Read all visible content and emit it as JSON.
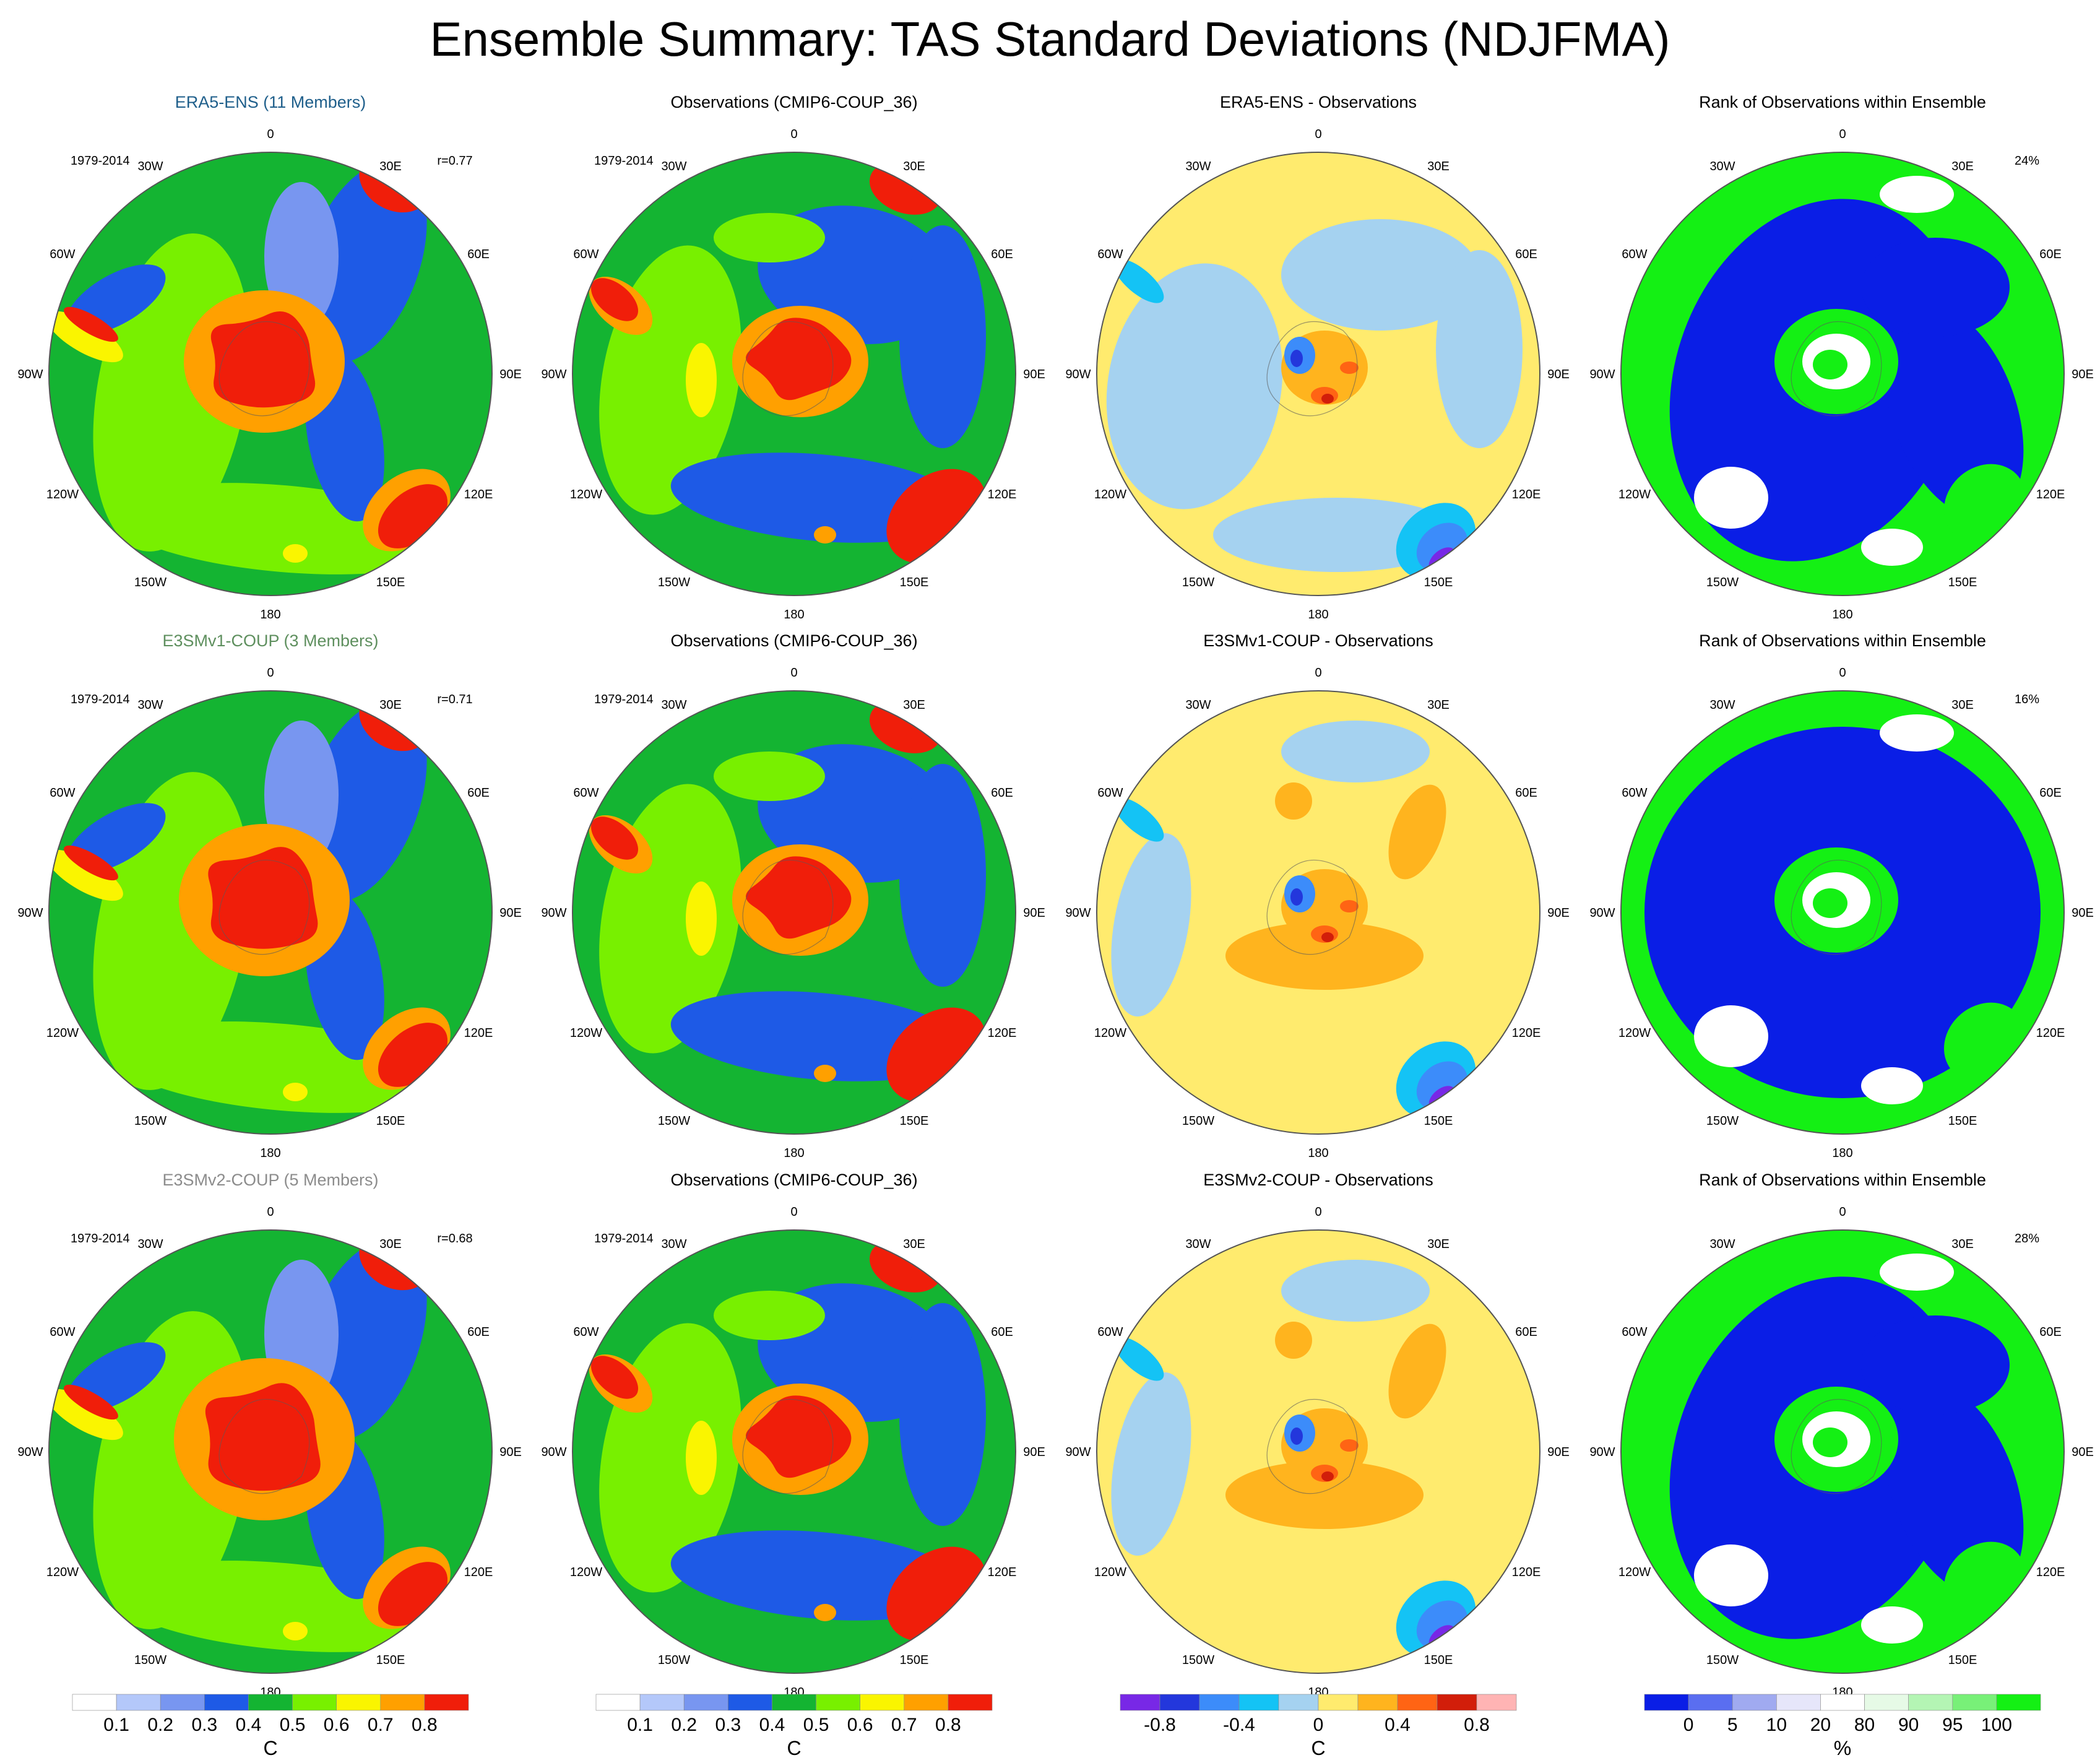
{
  "title": "Ensemble Summary: TAS Standard Deviations (NDJFMA)",
  "rows": [
    {
      "panels": [
        {
          "title": "ERA5-ENS (11 Members)",
          "title_color": "#1f5f8b",
          "period": "1979-2014",
          "corner": "r=0.77"
        },
        {
          "title": "Observations (CMIP6-COUP_36)",
          "title_color": "#000000",
          "period": "1979-2014",
          "corner": ""
        },
        {
          "title": "ERA5-ENS - Observations",
          "title_color": "#000000",
          "period": "",
          "corner": ""
        },
        {
          "title": "Rank of Observations within Ensemble",
          "title_color": "#000000",
          "period": "",
          "corner": "24%"
        }
      ]
    },
    {
      "panels": [
        {
          "title": "E3SMv1-COUP (3 Members)",
          "title_color": "#5e8f5e",
          "period": "1979-2014",
          "corner": "r=0.71"
        },
        {
          "title": "Observations (CMIP6-COUP_36)",
          "title_color": "#000000",
          "period": "1979-2014",
          "corner": ""
        },
        {
          "title": "E3SMv1-COUP - Observations",
          "title_color": "#000000",
          "period": "",
          "corner": ""
        },
        {
          "title": "Rank of Observations within Ensemble",
          "title_color": "#000000",
          "period": "",
          "corner": "16%"
        }
      ]
    },
    {
      "panels": [
        {
          "title": "E3SMv2-COUP (5 Members)",
          "title_color": "#8c8c8c",
          "period": "1979-2014",
          "corner": "r=0.68"
        },
        {
          "title": "Observations (CMIP6-COUP_36)",
          "title_color": "#000000",
          "period": "1979-2014",
          "corner": ""
        },
        {
          "title": "E3SMv2-COUP - Observations",
          "title_color": "#000000",
          "period": "",
          "corner": ""
        },
        {
          "title": "Rank of Observations within Ensemble",
          "title_color": "#000000",
          "period": "",
          "corner": "28%"
        }
      ]
    }
  ],
  "longitude_labels": [
    "0",
    "30E",
    "60E",
    "90E",
    "120E",
    "150E",
    "180",
    "150W",
    "120W",
    "90W",
    "60W",
    "30W"
  ],
  "colorbars": [
    {
      "colors": [
        "#ffffff",
        "#b4c8fa",
        "#7896f0",
        "#1e5ae6",
        "#14b432",
        "#78f000",
        "#faf500",
        "#ffa000",
        "#f01e0a"
      ],
      "tick_labels": [
        "0.1",
        "0.2",
        "0.3",
        "0.4",
        "0.5",
        "0.6",
        "0.7",
        "0.8"
      ],
      "tick_positions": [
        1,
        2,
        3,
        4,
        5,
        6,
        7,
        8
      ],
      "unit": "C"
    },
    {
      "colors": [
        "#ffffff",
        "#b4c8fa",
        "#7896f0",
        "#1e5ae6",
        "#14b432",
        "#78f000",
        "#faf500",
        "#ffa000",
        "#f01e0a"
      ],
      "tick_labels": [
        "0.1",
        "0.2",
        "0.3",
        "0.4",
        "0.5",
        "0.6",
        "0.7",
        "0.8"
      ],
      "tick_positions": [
        1,
        2,
        3,
        4,
        5,
        6,
        7,
        8
      ],
      "unit": "C"
    },
    {
      "colors": [
        "#7828e6",
        "#2337dc",
        "#3c8cfa",
        "#14c3f5",
        "#a5d2f0",
        "#ffeb6e",
        "#ffb41e",
        "#ff6414",
        "#d21e0a",
        "#ffb4b4"
      ],
      "tick_labels": [
        "-0.8",
        "-0.4",
        "0",
        "0.4",
        "0.8"
      ],
      "tick_positions": [
        1,
        3,
        5,
        7,
        9
      ],
      "unit": "C"
    },
    {
      "colors": [
        "#0a1ee6",
        "#5a6ef0",
        "#a0aaf0",
        "#e6e6fa",
        "#ffffff",
        "#e6fae6",
        "#b4f5b4",
        "#78f078",
        "#14f014"
      ],
      "tick_labels": [
        "0",
        "5",
        "10",
        "20",
        "80",
        "90",
        "95",
        "100"
      ],
      "tick_positions": [
        1,
        2,
        3,
        4,
        5,
        6,
        7,
        8
      ],
      "unit": "%"
    }
  ]
}
